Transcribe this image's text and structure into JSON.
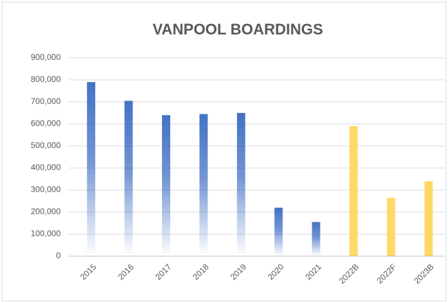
{
  "chart_data": {
    "type": "bar",
    "title": "VANPOOL BOARDINGS",
    "categories": [
      "2015",
      "2016",
      "2017",
      "2018",
      "2019",
      "2020",
      "2021",
      "2022B",
      "2022F",
      "2023B"
    ],
    "values": [
      790000,
      705000,
      640000,
      645000,
      650000,
      220000,
      155000,
      590000,
      265000,
      340000
    ],
    "colors": [
      "#4472c4",
      "#4472c4",
      "#4472c4",
      "#4472c4",
      "#4472c4",
      "#4472c4",
      "#4472c4",
      "#ffd966",
      "#ffd966",
      "#ffd966"
    ],
    "gradient": [
      true,
      true,
      true,
      true,
      true,
      true,
      true,
      false,
      false,
      false
    ],
    "ylim": [
      0,
      900000
    ],
    "yticks": [
      0,
      {
        "value": 100000,
        "label": "100,000"
      },
      {
        "value": 200000,
        "label": "200,000"
      },
      {
        "value": 300000,
        "label": "300,000"
      },
      {
        "value": 400000,
        "label": "400,000"
      },
      {
        "value": 500000,
        "label": "500,000"
      },
      {
        "value": 600000,
        "label": "600,000"
      },
      {
        "value": 700000,
        "label": "700,000"
      },
      {
        "value": 800000,
        "label": "800,000"
      },
      {
        "value": 900000,
        "label": "900,000"
      }
    ],
    "grid": true
  }
}
